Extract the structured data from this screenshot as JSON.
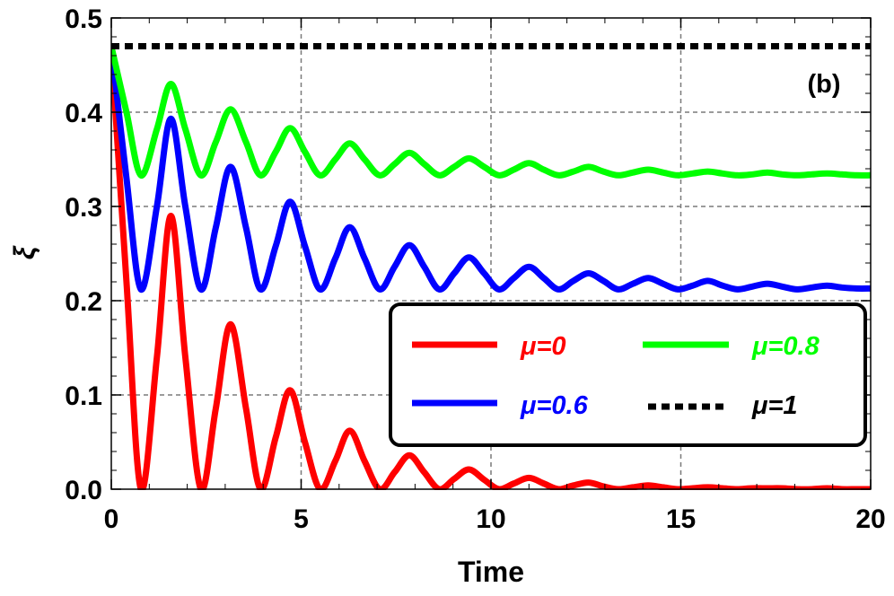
{
  "chart_data": {
    "type": "line",
    "panel_label": "(b)",
    "xlabel": "Time",
    "ylabel": "ξ",
    "xlim": [
      0,
      20
    ],
    "ylim": [
      0,
      0.5
    ],
    "xticks": [
      0,
      5,
      10,
      15,
      20
    ],
    "xtick_labels": [
      "0",
      "5",
      "10",
      "15",
      "20"
    ],
    "yticks": [
      0,
      0.1,
      0.2,
      0.3,
      0.4,
      0.5
    ],
    "ytick_labels": [
      "0.0",
      "0.1",
      "0.2",
      "0.3",
      "0.4",
      "0.5"
    ],
    "grid": true,
    "legend_position": "center-right",
    "series": [
      {
        "name": "μ=0",
        "color": "#ff0000",
        "style": "solid",
        "x": [
          0,
          0.4,
          0.78,
          1.2,
          1.57,
          1.95,
          2.36,
          2.75,
          3.14,
          3.55,
          3.93,
          4.33,
          4.71,
          5.1,
          5.5,
          5.9,
          6.28,
          6.67,
          7.07,
          7.46,
          7.85,
          8.24,
          8.64,
          9.03,
          9.42,
          9.82,
          10.21,
          10.6,
          11.0,
          11.39,
          11.78,
          12.17,
          12.57,
          12.96,
          13.35,
          13.74,
          14.14,
          14.53,
          14.92,
          15.31,
          15.71,
          16.1,
          16.49,
          16.88,
          17.28,
          17.67,
          18.06,
          18.45,
          18.85,
          19.24,
          19.63,
          20
        ],
        "values": [
          0.47,
          0.22,
          0.0,
          0.14,
          0.29,
          0.14,
          0.0,
          0.085,
          0.175,
          0.085,
          0.0,
          0.055,
          0.105,
          0.05,
          0.0,
          0.03,
          0.062,
          0.03,
          0.0,
          0.018,
          0.036,
          0.018,
          0.0,
          0.011,
          0.021,
          0.01,
          0.0,
          0.006,
          0.012,
          0.006,
          0.0,
          0.004,
          0.007,
          0.003,
          0.0,
          0.002,
          0.004,
          0.002,
          0.0,
          0.001,
          0.002,
          0.001,
          0.0,
          0.001,
          0.001,
          0.001,
          0.0,
          0.0,
          0.001,
          0.0,
          0.0,
          0.0
        ]
      },
      {
        "name": "μ=0.6",
        "color": "#0000ff",
        "style": "solid",
        "x": [
          0,
          0.4,
          0.78,
          1.2,
          1.57,
          1.95,
          2.36,
          2.75,
          3.14,
          3.55,
          3.93,
          4.33,
          4.71,
          5.1,
          5.5,
          5.9,
          6.28,
          6.67,
          7.07,
          7.46,
          7.85,
          8.24,
          8.64,
          9.03,
          9.42,
          9.82,
          10.21,
          10.6,
          11.0,
          11.39,
          11.78,
          12.17,
          12.57,
          12.96,
          13.35,
          13.74,
          14.14,
          14.53,
          14.92,
          15.31,
          15.71,
          16.1,
          16.49,
          16.88,
          17.28,
          17.67,
          18.06,
          18.45,
          18.85,
          19.24,
          19.63,
          20
        ],
        "values": [
          0.47,
          0.33,
          0.212,
          0.3,
          0.393,
          0.3,
          0.212,
          0.277,
          0.342,
          0.277,
          0.212,
          0.258,
          0.305,
          0.258,
          0.212,
          0.245,
          0.278,
          0.245,
          0.212,
          0.236,
          0.259,
          0.236,
          0.212,
          0.229,
          0.246,
          0.229,
          0.212,
          0.224,
          0.236,
          0.224,
          0.212,
          0.221,
          0.229,
          0.221,
          0.212,
          0.218,
          0.224,
          0.218,
          0.212,
          0.216,
          0.221,
          0.216,
          0.212,
          0.215,
          0.218,
          0.215,
          0.212,
          0.214,
          0.216,
          0.214,
          0.213,
          0.213
        ]
      },
      {
        "name": "μ=0.8",
        "color": "#00ff00",
        "style": "solid",
        "x": [
          0,
          0.4,
          0.78,
          1.2,
          1.57,
          1.95,
          2.36,
          2.75,
          3.14,
          3.55,
          3.93,
          4.33,
          4.71,
          5.1,
          5.5,
          5.9,
          6.28,
          6.67,
          7.07,
          7.46,
          7.85,
          8.24,
          8.64,
          9.03,
          9.42,
          9.82,
          10.21,
          10.6,
          11.0,
          11.39,
          11.78,
          12.17,
          12.57,
          12.96,
          13.35,
          13.74,
          14.14,
          14.53,
          14.92,
          15.31,
          15.71,
          16.1,
          16.49,
          16.88,
          17.28,
          17.67,
          18.06,
          18.45,
          18.85,
          19.24,
          19.63,
          20
        ],
        "values": [
          0.47,
          0.4,
          0.333,
          0.382,
          0.43,
          0.382,
          0.333,
          0.368,
          0.403,
          0.368,
          0.333,
          0.358,
          0.383,
          0.358,
          0.333,
          0.35,
          0.367,
          0.35,
          0.333,
          0.345,
          0.357,
          0.345,
          0.333,
          0.342,
          0.351,
          0.342,
          0.333,
          0.339,
          0.346,
          0.339,
          0.333,
          0.337,
          0.342,
          0.337,
          0.333,
          0.336,
          0.339,
          0.336,
          0.333,
          0.335,
          0.337,
          0.335,
          0.333,
          0.334,
          0.336,
          0.334,
          0.333,
          0.334,
          0.335,
          0.334,
          0.333,
          0.333
        ]
      },
      {
        "name": "μ=1",
        "color": "#000000",
        "style": "dotted",
        "x": [
          0,
          20
        ],
        "values": [
          0.47,
          0.47
        ]
      }
    ]
  }
}
